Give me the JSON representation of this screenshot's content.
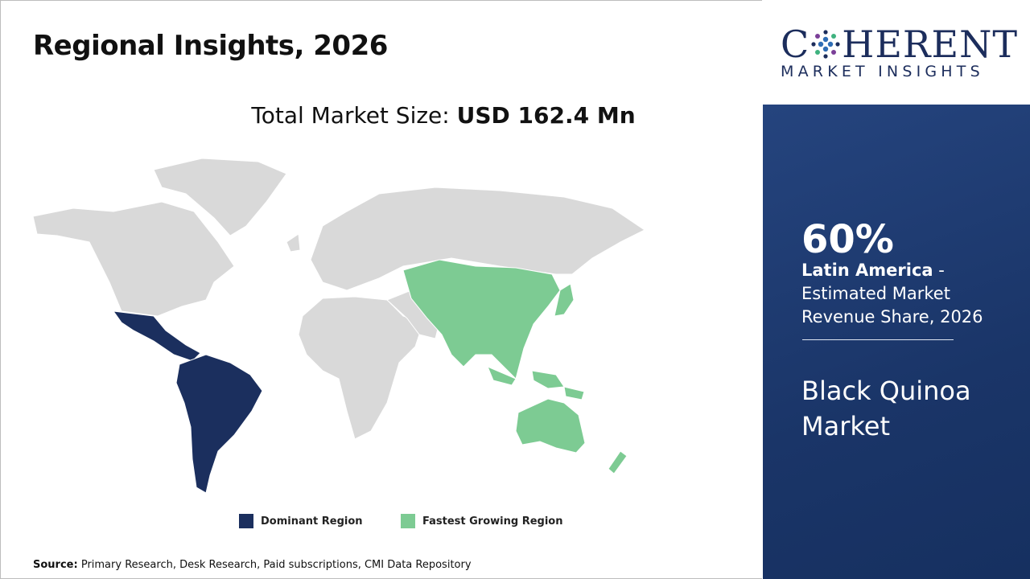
{
  "header": {
    "title": "Regional Insights, 2026"
  },
  "market_size": {
    "label": "Total Market Size:",
    "value": "USD 162.4 Mn"
  },
  "legend": [
    {
      "label": "Dominant Region",
      "color": "#1b2f5e"
    },
    {
      "label": "Fastest Growing Region",
      "color": "#7dcb93"
    }
  ],
  "source": {
    "label": "Source:",
    "text": "Primary Research, Desk Research, Paid subscriptions, CMI Data Repository"
  },
  "logo": {
    "name_start": "C",
    "name_end": "HERENT",
    "tagline": "MARKET INSIGHTS"
  },
  "panel": {
    "share": "60%",
    "region": "Latin America",
    "description": " - Estimated Market Revenue Share, 2026",
    "market": "Black Quinoa Market"
  }
}
